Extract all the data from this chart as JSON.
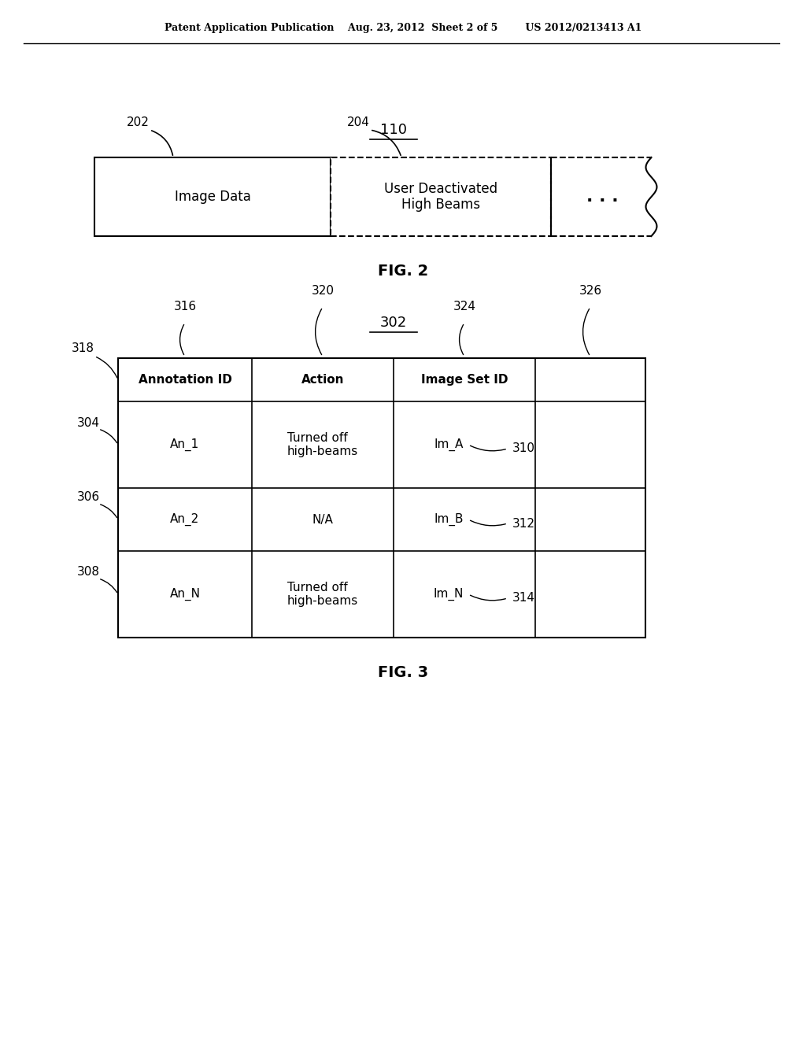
{
  "bg_color": "#ffffff",
  "header_text": "Patent Application Publication    Aug. 23, 2012  Sheet 2 of 5        US 2012/0213413 A1",
  "fig2_label": "110",
  "fig2_caption": "FIG. 2",
  "fig3_label": "302",
  "fig3_caption": "FIG. 3",
  "box1_label": "202",
  "box1_text": "Image Data",
  "box2_label": "204",
  "box2_text": "User Deactivated\nHigh Beams",
  "table_col_headers": [
    "Annotation ID",
    "Action",
    "Image Set ID",
    ""
  ],
  "table_col_header_labels": [
    "316",
    "320",
    "324",
    "326"
  ],
  "table_row_labels": [
    "318",
    "304",
    "306",
    "308"
  ],
  "table_rows": [
    [
      "An_1",
      "Turned off\nhigh-beams",
      "Im_A",
      ""
    ],
    [
      "An_2",
      "N/A",
      "Im_B",
      ""
    ],
    [
      "An_N",
      "Turned off\nhigh-beams",
      "Im_N",
      ""
    ]
  ],
  "row_labels": [
    "304",
    "306",
    "308"
  ],
  "image_set_labels": [
    "310",
    "312",
    "314"
  ],
  "image_set_ids": [
    "Im_A",
    "Im_B",
    "Im_N"
  ]
}
